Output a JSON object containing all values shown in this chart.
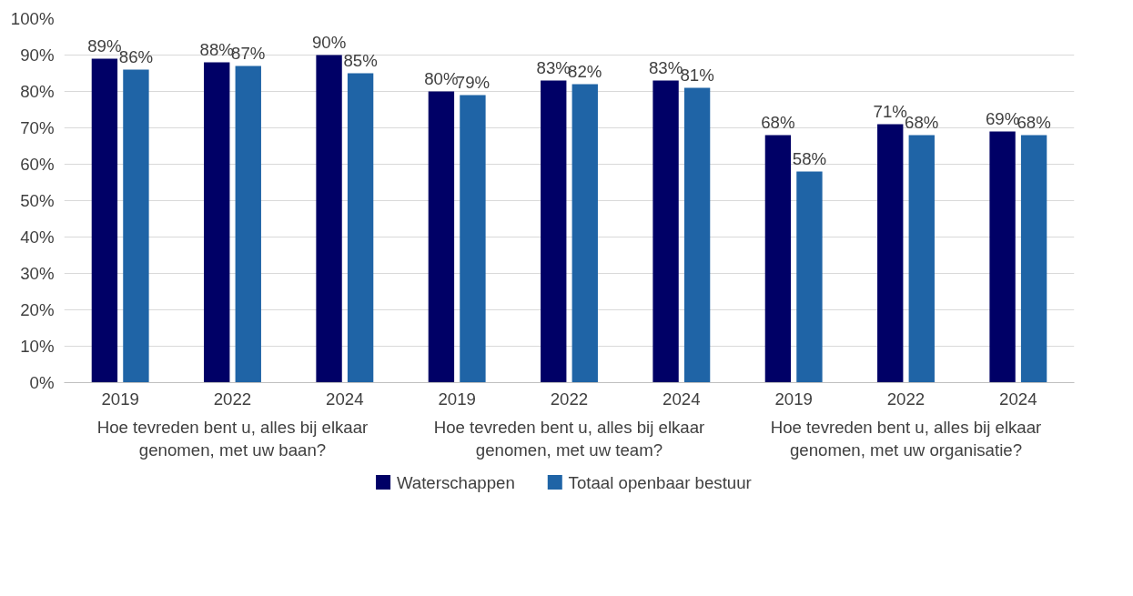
{
  "chart_data": {
    "type": "bar",
    "categories": [
      "2019",
      "2022",
      "2024",
      "2019",
      "2022",
      "2024",
      "2019",
      "2022",
      "2024"
    ],
    "series": [
      {
        "name": "Waterschappen",
        "color": "#000066",
        "values": [
          89,
          88,
          90,
          80,
          83,
          83,
          68,
          71,
          69
        ],
        "value_labels": [
          "89%",
          "88%",
          "90%",
          "80%",
          "83%",
          "83%",
          "68%",
          "71%",
          "69%"
        ]
      },
      {
        "name": "Totaal openbaar bestuur",
        "color": "#1f64a6",
        "values": [
          86,
          87,
          85,
          79,
          82,
          81,
          58,
          68,
          68
        ],
        "value_labels": [
          "86%",
          "87%",
          "85%",
          "79%",
          "82%",
          "81%",
          "58%",
          "68%",
          "68%"
        ]
      }
    ],
    "annotations": [
      "Hoe tevreden bent u, alles bij elkaar genomen, met uw baan?",
      "Hoe tevreden bent u, alles bij elkaar genomen, met uw team?",
      "Hoe tevreden bent u, alles bij elkaar genomen, met uw organisatie?"
    ],
    "ylim": [
      0,
      100
    ],
    "yticks": [
      {
        "value": 0,
        "label": "0%"
      },
      {
        "value": 10,
        "label": "10%"
      },
      {
        "value": 20,
        "label": "20%"
      },
      {
        "value": 30,
        "label": "30%"
      },
      {
        "value": 40,
        "label": "40%"
      },
      {
        "value": 50,
        "label": "50%"
      },
      {
        "value": 60,
        "label": "60%"
      },
      {
        "value": 70,
        "label": "70%"
      },
      {
        "value": 80,
        "label": "80%"
      },
      {
        "value": 90,
        "label": "90%"
      },
      {
        "value": 100,
        "label": "100%"
      }
    ],
    "grid": "y",
    "legend": "bottom"
  }
}
